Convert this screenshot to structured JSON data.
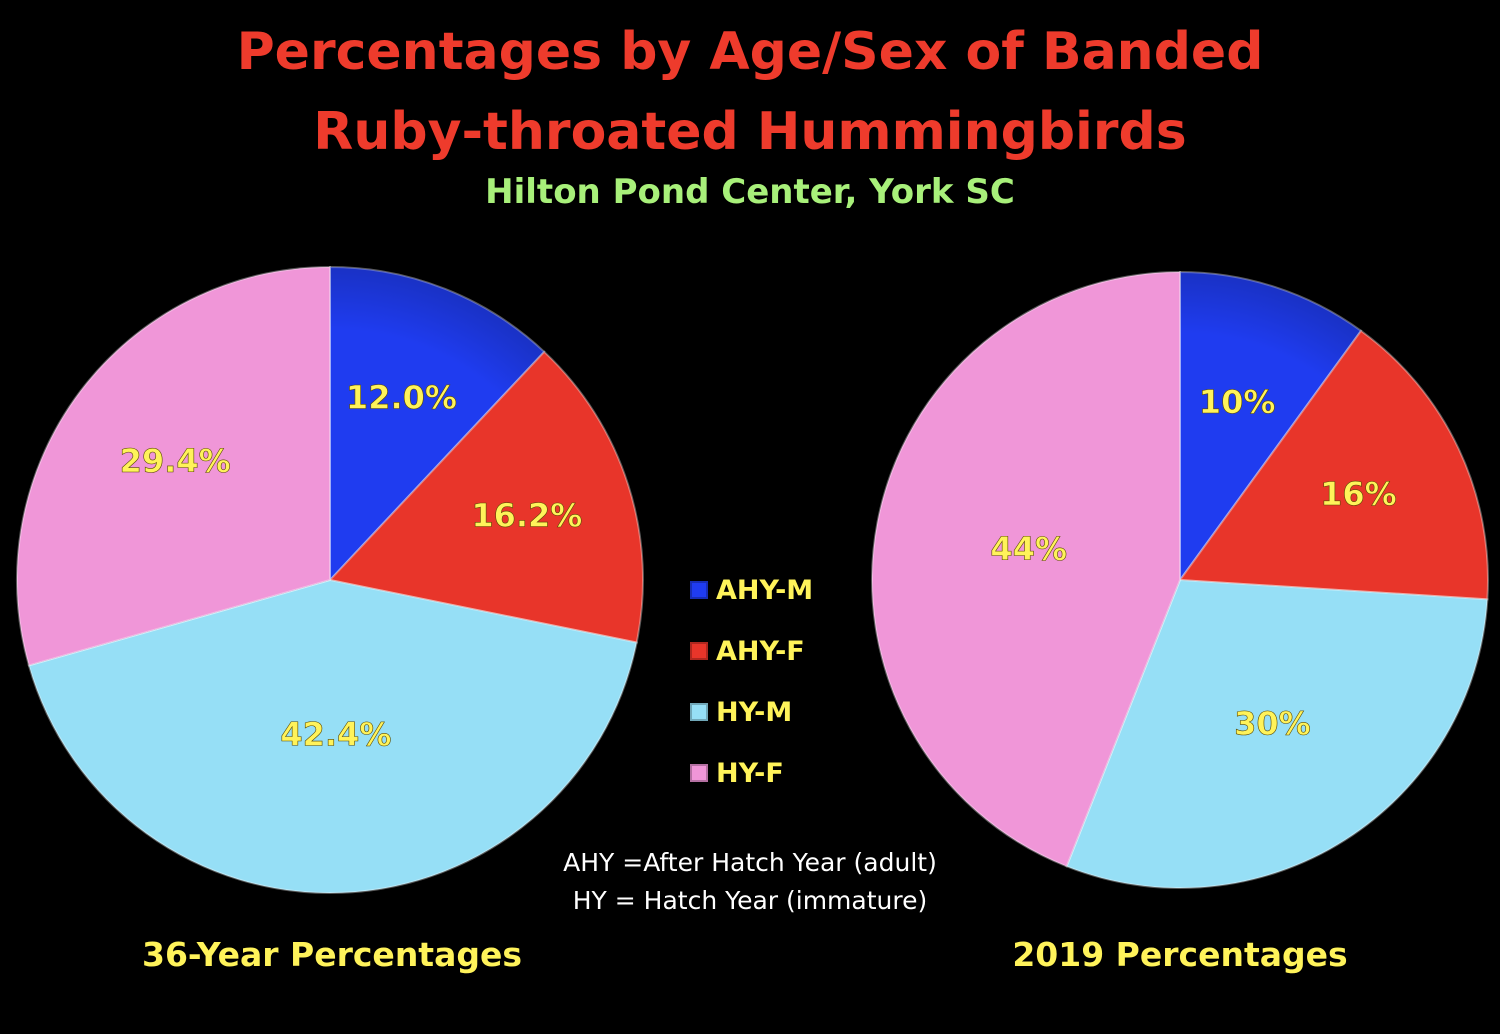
{
  "title_line1": "Percentages by Age/Sex of Banded",
  "title_line2": "Ruby-throated Hummingbirds",
  "subtitle": "Hilton Pond Center, York SC",
  "colors": {
    "AHY-M": "#1f3cf0",
    "AHY-F": "#e8352a",
    "HY-M": "#96dff6",
    "HY-F": "#f096d8",
    "label_text": "#fff35a",
    "title": "#ee3b2c",
    "subtitle": "#a8f07a"
  },
  "legend": [
    {
      "key": "AHY-M",
      "label": "AHY-M"
    },
    {
      "key": "AHY-F",
      "label": "AHY-F"
    },
    {
      "key": "HY-M",
      "label": "HY-M"
    },
    {
      "key": "HY-F",
      "label": "HY-F"
    }
  ],
  "notes": {
    "line1": "AHY =After Hatch Year (adult)",
    "line2": "HY = Hatch Year (immature)"
  },
  "chart_data": [
    {
      "type": "pie",
      "title": "36-Year Percentages",
      "categories": [
        "AHY-M",
        "AHY-F",
        "HY-M",
        "HY-F"
      ],
      "values": [
        12.0,
        16.2,
        42.4,
        29.4
      ],
      "labels": [
        "12.0%",
        "16.2%",
        "42.4%",
        "29.4%"
      ],
      "start": "12 o'clock, clockwise"
    },
    {
      "type": "pie",
      "title": "2019 Percentages",
      "categories": [
        "AHY-M",
        "AHY-F",
        "HY-M",
        "HY-F"
      ],
      "values": [
        10,
        16,
        30,
        44
      ],
      "labels": [
        "10%",
        "16%",
        "30%",
        "44%"
      ],
      "start": "12 o'clock, clockwise"
    }
  ]
}
